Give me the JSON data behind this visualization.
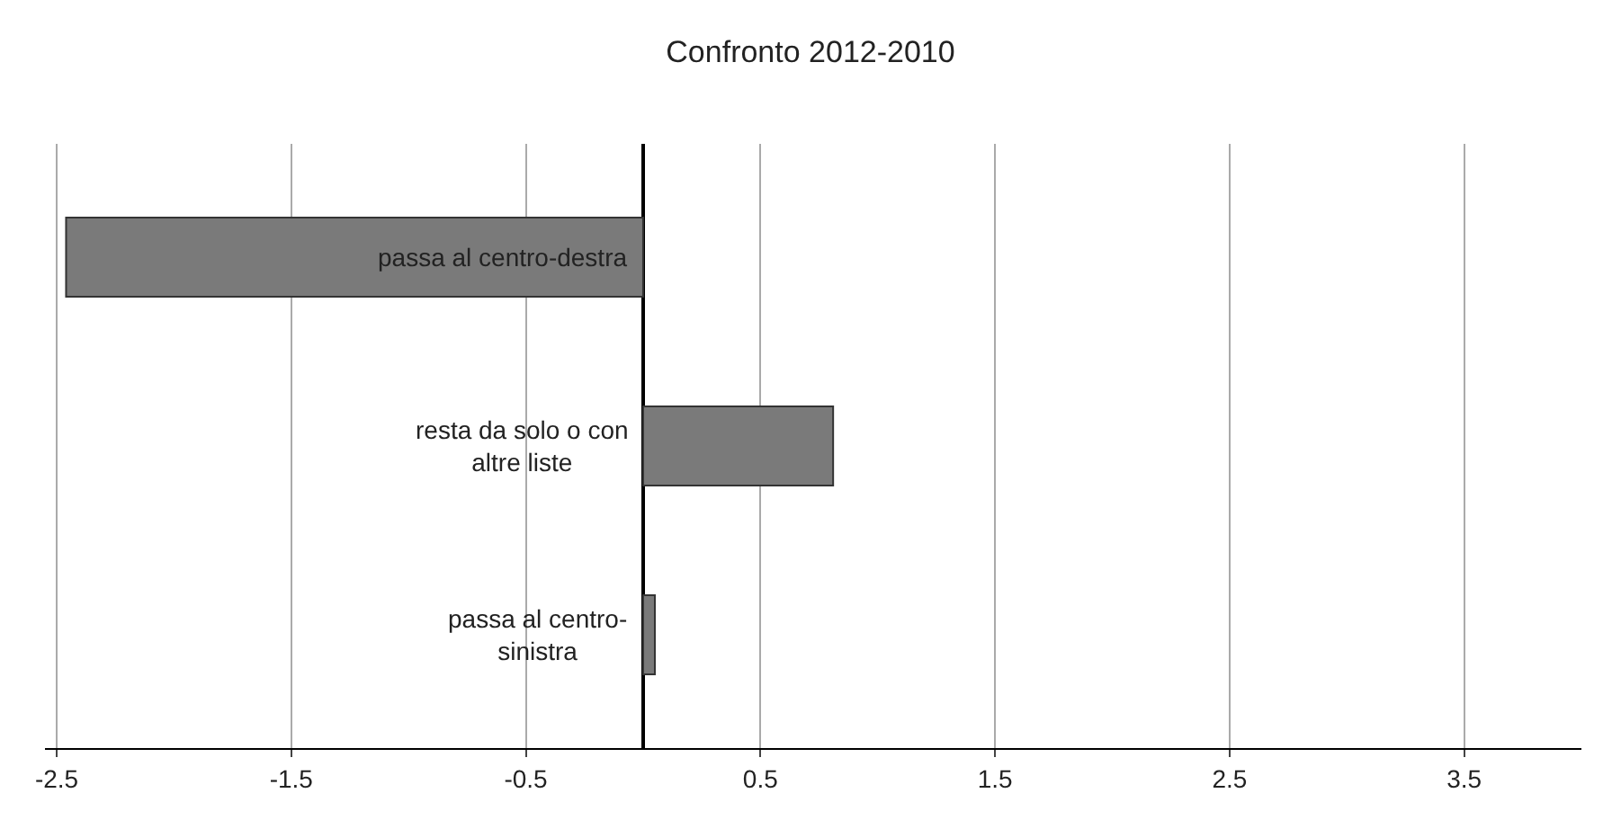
{
  "chart_data": {
    "type": "bar",
    "orientation": "horizontal",
    "title": "Confronto 2012-2010",
    "categories": [
      "passa al centro-destra",
      "resta da solo o con altre liste",
      "passa al centro-sinistra"
    ],
    "values": [
      -2.46,
      0.81,
      0.05
    ],
    "color": "#7a7a7a",
    "xlim": [
      -2.55,
      4.0
    ],
    "xticks": [
      -2.5,
      -1.5,
      -0.5,
      0.5,
      1.5,
      2.5,
      3.5
    ],
    "grid": "x"
  }
}
